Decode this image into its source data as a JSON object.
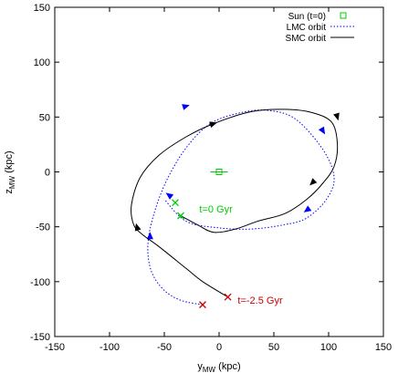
{
  "chart_data": {
    "type": "line",
    "title": "",
    "xlabel": "y",
    "xlabel_sub": "MW",
    "xlabel_unit": " (kpc)",
    "ylabel": "z",
    "ylabel_sub": "MW",
    "ylabel_unit": " (kpc)",
    "xlim": [
      -150,
      150
    ],
    "ylim": [
      -150,
      150
    ],
    "xticks": [
      -150,
      -100,
      -50,
      0,
      50,
      100,
      150
    ],
    "yticks": [
      -150,
      -100,
      -50,
      0,
      50,
      100,
      150
    ],
    "grid": false,
    "legend_position": "top-right",
    "legend": [
      {
        "label": "Sun (t=0)",
        "style": "marker",
        "color": "#00cc00"
      },
      {
        "label": "LMC orbit",
        "style": "dotted",
        "color": "#0000ff"
      },
      {
        "label": "SMC orbit",
        "style": "solid",
        "color": "#000000"
      }
    ],
    "series": [
      {
        "name": "LMC orbit",
        "color": "#0000ff",
        "style": "dotted",
        "points": [
          [
            -15,
            -121
          ],
          [
            -35,
            -117
          ],
          [
            -51,
            -107
          ],
          [
            -62,
            -90
          ],
          [
            -65,
            -67
          ],
          [
            -60,
            -40
          ],
          [
            -48,
            -8
          ],
          [
            -30,
            22
          ],
          [
            -8,
            44
          ],
          [
            20,
            54
          ],
          [
            45,
            56
          ],
          [
            70,
            48
          ],
          [
            95,
            20
          ],
          [
            105,
            -5
          ],
          [
            98,
            -25
          ],
          [
            80,
            -42
          ],
          [
            60,
            -48
          ],
          [
            30,
            -52
          ],
          [
            0,
            -51
          ],
          [
            -30,
            -45
          ],
          [
            -50,
            -25
          ]
        ],
        "arrows": [
          {
            "at": [
              -30,
              60
            ],
            "dir": [
              1,
              0.3
            ]
          },
          {
            "at": [
              95,
              37
            ],
            "dir": [
              0.6,
              -1
            ]
          },
          {
            "at": [
              80,
              -35
            ],
            "dir": [
              -0.7,
              -0.5
            ]
          },
          {
            "at": [
              -63,
              -58
            ],
            "dir": [
              0,
              1
            ]
          },
          {
            "at": [
              -46,
              -21
            ],
            "dir": [
              -0.7,
              0.5
            ]
          }
        ]
      },
      {
        "name": "SMC orbit",
        "color": "#000000",
        "style": "solid",
        "points": [
          [
            8,
            -114
          ],
          [
            -15,
            -100
          ],
          [
            -30,
            -88
          ],
          [
            -55,
            -68
          ],
          [
            -70,
            -57
          ],
          [
            -78,
            -48
          ],
          [
            -80,
            -30
          ],
          [
            -72,
            -5
          ],
          [
            -55,
            15
          ],
          [
            -30,
            32
          ],
          [
            -5,
            44
          ],
          [
            30,
            55
          ],
          [
            60,
            57
          ],
          [
            85,
            54
          ],
          [
            103,
            45
          ],
          [
            108,
            25
          ],
          [
            105,
            5
          ],
          [
            95,
            -10
          ],
          [
            80,
            -25
          ],
          [
            60,
            -38
          ],
          [
            35,
            -45
          ],
          [
            15,
            -52
          ],
          [
            -5,
            -55
          ],
          [
            -20,
            -48
          ],
          [
            -35,
            -40
          ]
        ],
        "arrows": [
          {
            "at": [
              -5,
              44
            ],
            "dir": [
              1,
              0.3
            ]
          },
          {
            "at": [
              108,
              50
            ],
            "dir": [
              0.3,
              -1
            ]
          },
          {
            "at": [
              85,
              -10
            ],
            "dir": [
              -0.7,
              -0.7
            ]
          },
          {
            "at": [
              -75,
              -50
            ],
            "dir": [
              -0.3,
              1
            ]
          }
        ]
      }
    ],
    "markers": [
      {
        "name": "Sun (t=0)",
        "type": "square",
        "color": "#00cc00",
        "at": [
          0,
          0
        ],
        "errbar": 8
      },
      {
        "name": "LMC t=0",
        "type": "x",
        "color": "#00cc00",
        "at": [
          -40,
          -28
        ]
      },
      {
        "name": "SMC t=0",
        "type": "x",
        "color": "#00cc00",
        "at": [
          -35,
          -40
        ]
      },
      {
        "name": "LMC t=-2.5",
        "type": "x",
        "color": "#cc0000",
        "at": [
          -15,
          -121
        ]
      },
      {
        "name": "SMC t=-2.5",
        "type": "x",
        "color": "#cc0000",
        "at": [
          8,
          -114
        ]
      }
    ],
    "annotations": [
      {
        "text": "t=0 Gyr",
        "color": "#00cc00",
        "at": [
          -18,
          -37
        ]
      },
      {
        "text": "t=-2.5 Gyr",
        "color": "#cc0000",
        "at": [
          17,
          -120
        ]
      }
    ]
  }
}
